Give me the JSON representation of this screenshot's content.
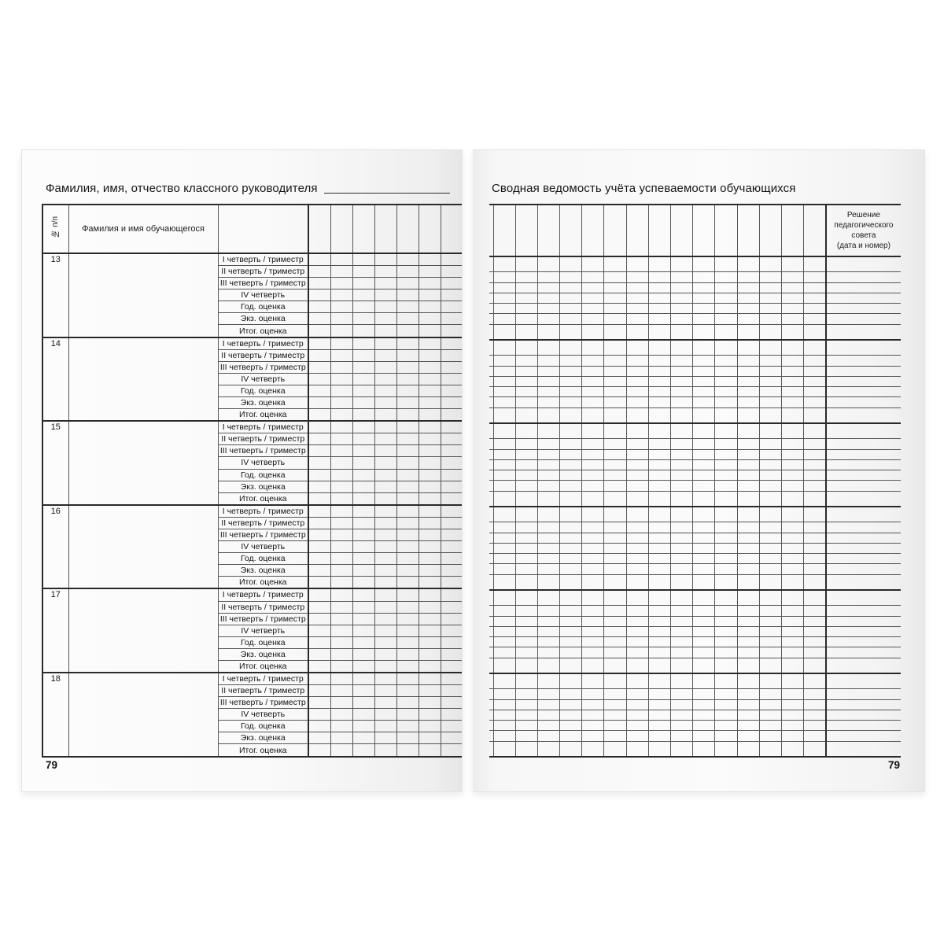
{
  "left_page": {
    "title": "Фамилия, имя, отчество классного руководителя",
    "page_number": "79",
    "table": {
      "number_column_header": "№ п/п",
      "name_column_header": "Фамилия и имя обучающегося",
      "period_row_labels": [
        "I четверть / триместр",
        "II четверть / триместр",
        "III четверть / триместр",
        "IV четверть",
        "Год. оценка",
        "Экз. оценка",
        "Итог. оценка"
      ],
      "student_numbers": [
        "13",
        "14",
        "15",
        "16",
        "17",
        "18"
      ],
      "grade_columns": 6
    }
  },
  "right_page": {
    "title": "Сводная ведомость учёта успеваемости обучающихся",
    "page_number": "79",
    "table": {
      "decision_column_header": "Решение\nпедагогического\nсовета\n(дата и номер)",
      "grade_columns": 15,
      "row_blocks": 6,
      "rows_per_block": 7
    }
  },
  "colors": {
    "grid_line_thin": "#565656",
    "grid_line_thick": "#2a2a2a",
    "text": "#1b1b1b",
    "page_background": "#fbfbfb"
  }
}
